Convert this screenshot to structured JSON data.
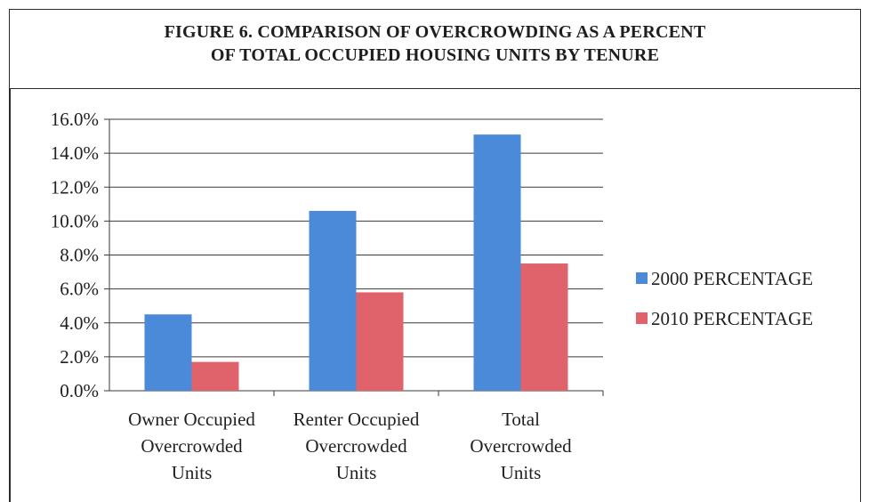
{
  "chart_data": {
    "type": "bar",
    "title_lines": [
      "FIGURE 6. COMPARISON OF OVERCROWDING AS A PERCENT",
      "OF TOTAL OCCUPIED HOUSING UNITS BY TENURE"
    ],
    "categories": [
      [
        "Owner Occupied",
        "Overcrowded",
        "Units"
      ],
      [
        "Renter Occupied",
        "Overcrowded",
        "Units"
      ],
      [
        "Total",
        "Overcrowded",
        "Units"
      ]
    ],
    "series": [
      {
        "name": "2000 PERCENTAGE",
        "color": "#4a8ad8",
        "values": [
          4.5,
          10.6,
          15.1
        ]
      },
      {
        "name": "2010 PERCENTAGE",
        "color": "#e0626b",
        "values": [
          1.7,
          5.8,
          7.5
        ]
      }
    ],
    "ylim": [
      0,
      16
    ],
    "yticks": [
      0,
      2,
      4,
      6,
      8,
      10,
      12,
      14,
      16
    ],
    "ytick_labels": [
      "0.0%",
      "2.0%",
      "4.0%",
      "6.0%",
      "8.0%",
      "10.0%",
      "12.0%",
      "14.0%",
      "16.0%"
    ],
    "grid": true,
    "legend_position": "right"
  }
}
